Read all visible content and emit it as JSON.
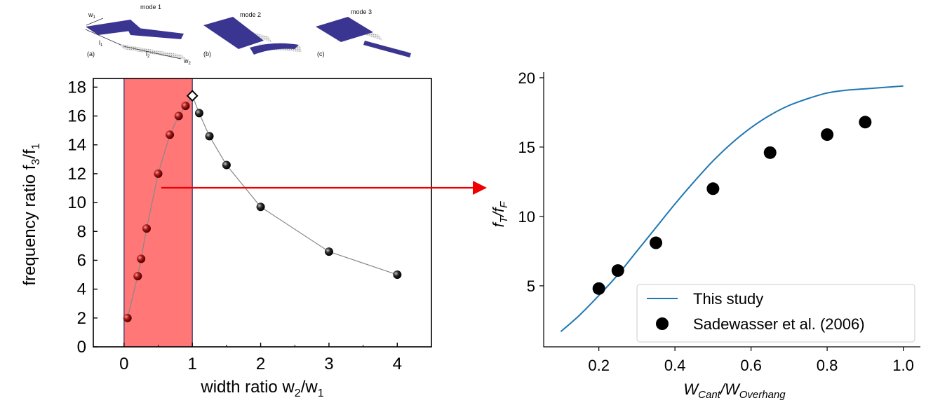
{
  "inset": {
    "modes": [
      "mode 1",
      "mode 2",
      "mode 3"
    ],
    "panels": [
      "(a)",
      "(b)",
      "(c)"
    ],
    "dims": {
      "w1": {
        "base": "w",
        "sub": "1"
      },
      "l1": {
        "base": "l",
        "sub": "1"
      },
      "l2": {
        "base": "l",
        "sub": "2"
      },
      "w2": {
        "base": "w",
        "sub": "2"
      }
    },
    "colors": {
      "cantilever": "#3a3591",
      "shadow": "#c8c8c8"
    }
  },
  "left_axes": {
    "ylabel": {
      "base": "frequency ratio f",
      "sub1": "3",
      "mid": "/f",
      "sub2": "1"
    },
    "xlabel": {
      "base": "width ratio w",
      "sub1": "2",
      "mid": "/w",
      "sub2": "1"
    }
  },
  "right_axes": {
    "ylabel": {
      "f1": "f",
      "s1": "T",
      "slash": "/f",
      "s2": "F"
    },
    "xlabel": {
      "w1": "W",
      "s1": "Cant",
      "slash": "/W",
      "s2": "Overhang"
    }
  },
  "chart_data": [
    {
      "type": "scatter",
      "xlim": [
        -0.45,
        4.5
      ],
      "ylim": [
        0,
        18.6
      ],
      "xticks": [
        0,
        1,
        2,
        3,
        4
      ],
      "yticks": [
        0,
        2,
        4,
        6,
        8,
        10,
        12,
        14,
        16,
        18
      ],
      "grid": false,
      "highlight_region": {
        "x": [
          0,
          1
        ],
        "color": "#ff7070"
      },
      "marker_colors": {
        "in_region": "#8b0000",
        "outside": "#000000",
        "connecting_line": "#888888"
      },
      "series": [
        {
          "x": [
            0.05,
            0.2,
            0.25,
            0.33,
            0.5,
            0.67,
            0.8,
            0.9,
            1.1,
            1.25,
            1.5,
            2.0,
            3.0,
            4.0
          ],
          "y": [
            2.0,
            4.9,
            6.1,
            8.2,
            12.0,
            14.7,
            16.0,
            16.7,
            16.2,
            14.6,
            12.6,
            9.7,
            6.6,
            5.0
          ]
        }
      ],
      "annotations": [
        {
          "marker": "open-diamond",
          "x": 1.0,
          "y": 17.4
        }
      ],
      "arrow": {
        "color": "#ee0000"
      }
    },
    {
      "type": "line",
      "xlim": [
        0.055,
        1.045
      ],
      "ylim": [
        0.6,
        20.4
      ],
      "xticks": [
        "0.2",
        "0.4",
        "0.6",
        "0.8",
        "1.0"
      ],
      "yticks": [
        "5",
        "10",
        "15",
        "20"
      ],
      "grid": false,
      "legend_position": "lower-right",
      "series": [
        {
          "name": "This study",
          "color": "#1f77b4",
          "x": [
            0.1,
            0.15,
            0.2,
            0.25,
            0.3,
            0.35,
            0.4,
            0.45,
            0.5,
            0.55,
            0.6,
            0.65,
            0.7,
            0.75,
            0.8,
            0.85,
            0.9,
            0.95,
            1.0
          ],
          "y": [
            1.7,
            2.9,
            4.3,
            5.8,
            7.5,
            9.2,
            10.9,
            12.5,
            14.0,
            15.3,
            16.4,
            17.3,
            18.0,
            18.5,
            18.9,
            19.1,
            19.2,
            19.3,
            19.4
          ]
        },
        {
          "name": "Sadewasser et al. (2006)",
          "color": "#000000",
          "x": [
            0.2,
            0.25,
            0.35,
            0.5,
            0.65,
            0.8,
            0.9
          ],
          "y": [
            4.8,
            6.1,
            8.1,
            12.0,
            14.6,
            15.9,
            16.8
          ]
        }
      ]
    }
  ]
}
